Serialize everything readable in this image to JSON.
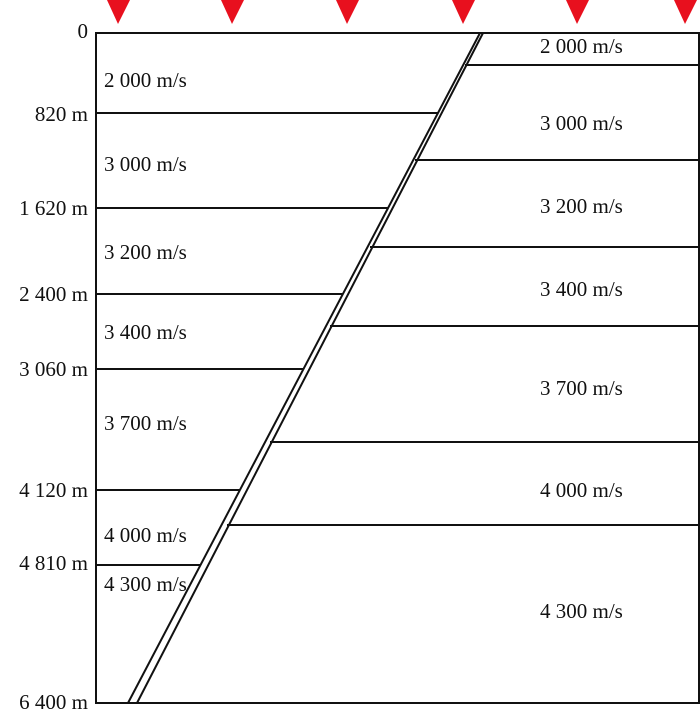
{
  "depths": [
    "0",
    "820 m",
    "1 620 m",
    "2 400 m",
    "3 060 m",
    "4 120 m",
    "4 810 m",
    "6 400 m"
  ],
  "left_velocities": [
    "2 000 m/s",
    "3 000 m/s",
    "3 200 m/s",
    "3 400 m/s",
    "3 700 m/s",
    "4 000 m/s",
    "4 300 m/s"
  ],
  "right_velocities": [
    "2 000 m/s",
    "3 000 m/s",
    "3 200 m/s",
    "3 400 m/s",
    "3 700 m/s",
    "4 000 m/s",
    "4 300 m/s"
  ]
}
